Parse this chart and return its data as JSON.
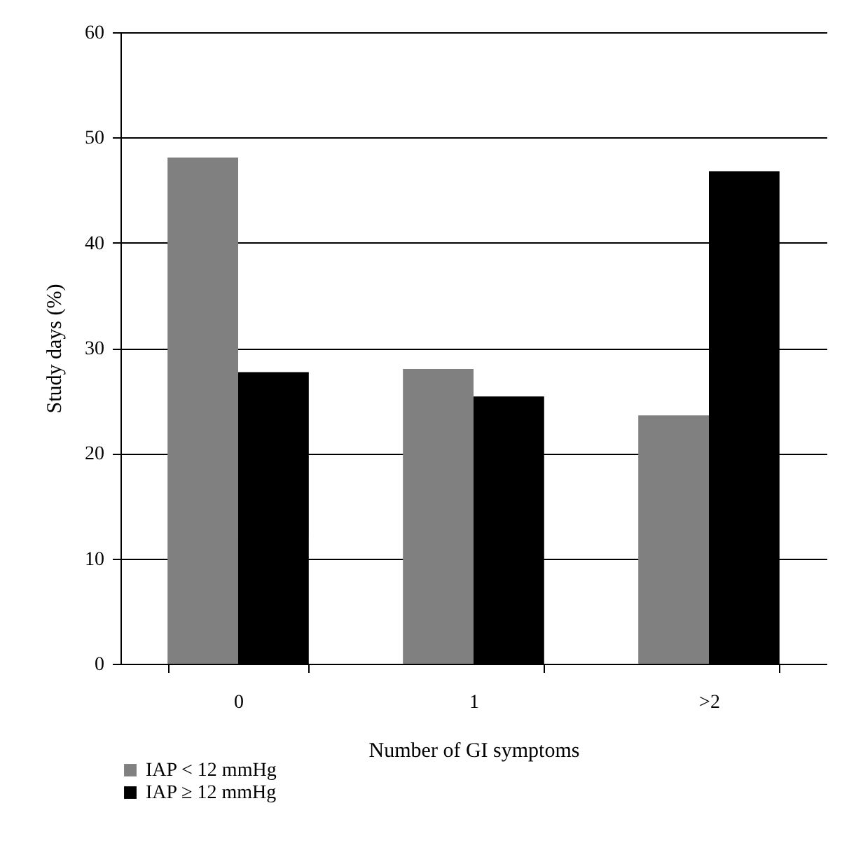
{
  "chart_data": {
    "type": "bar",
    "xlabel": "Number of GI symptoms",
    "ylabel": "Study days (%)",
    "categories": [
      "0",
      "1",
      ">2"
    ],
    "series": [
      {
        "name": "IAP < 12 mmHg",
        "color": "#808080",
        "values": [
          48.1,
          28.0,
          23.6
        ]
      },
      {
        "name": "IAP ≥ 12 mmHg",
        "color": "#000000",
        "values": [
          27.7,
          25.4,
          46.8
        ]
      }
    ],
    "ylim": [
      0,
      60
    ],
    "yticks": [
      0,
      10,
      20,
      30,
      40,
      50,
      60
    ],
    "grid": "y",
    "legend": "bottom left"
  }
}
